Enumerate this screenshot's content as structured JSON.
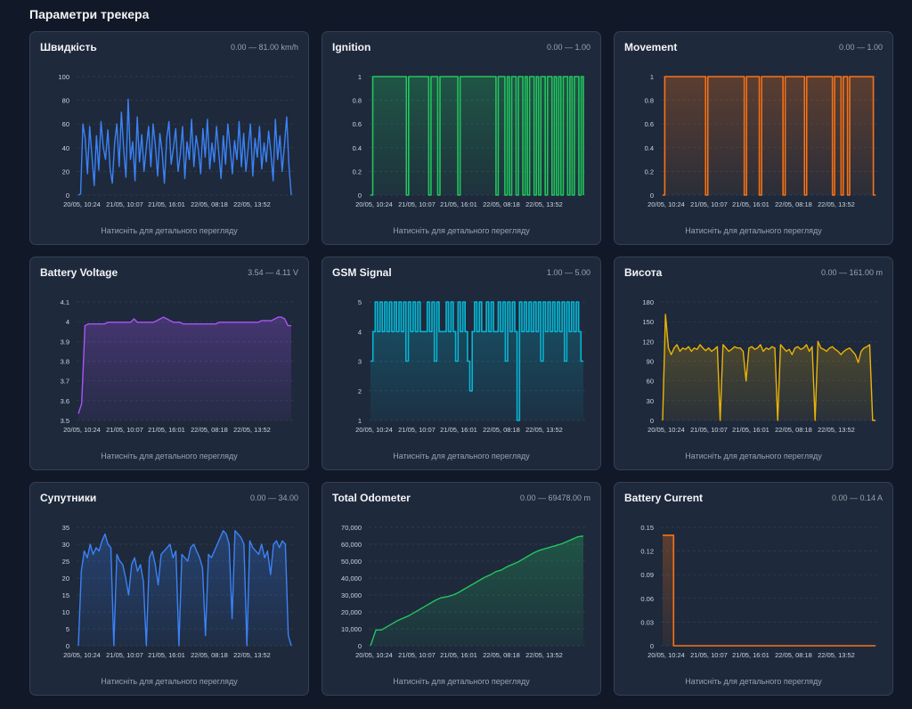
{
  "page_title": "Параметри трекера",
  "footer_text": "Натисніть для детального перегляду",
  "x_ticks": [
    "20/05, 10:24",
    "21/05, 10:07",
    "21/05, 16:01",
    "22/05, 08:18",
    "22/05, 13:52"
  ],
  "chart_data": [
    {
      "id": "speed",
      "type": "line",
      "title": "Швидкість",
      "range_label": "0.00 — 81.00 km/h",
      "color": "#3b82f6",
      "ylim": [
        0,
        100
      ],
      "yticks": [
        "0",
        "20",
        "40",
        "60",
        "80",
        "100"
      ],
      "fill": false,
      "step": false,
      "x_ticks": [
        "20/05, 10:24",
        "21/05, 10:07",
        "21/05, 16:01",
        "22/05, 08:18",
        "22/05, 13:52"
      ],
      "values": [
        0,
        1,
        60,
        48,
        18,
        58,
        32,
        8,
        50,
        21,
        62,
        40,
        30,
        55,
        22,
        10,
        44,
        60,
        24,
        70,
        38,
        15,
        81,
        30,
        45,
        12,
        66,
        28,
        51,
        20,
        40,
        58,
        24,
        60,
        42,
        16,
        52,
        36,
        10,
        48,
        62,
        26,
        40,
        56,
        20,
        34,
        58,
        14,
        45,
        30,
        64,
        24,
        50,
        38,
        18,
        56,
        32,
        64,
        22,
        44,
        28,
        58,
        36,
        14,
        50,
        26,
        60,
        40,
        18,
        46,
        30,
        62,
        24,
        52,
        20,
        40,
        60,
        16,
        48,
        32,
        58,
        22,
        44,
        28,
        54,
        36,
        12,
        64,
        30,
        50,
        20,
        42,
        66,
        24,
        0
      ]
    },
    {
      "id": "ignition",
      "type": "line",
      "title": "Ignition",
      "range_label": "0.00 — 1.00",
      "color": "#22c55e",
      "ylim": [
        0,
        1
      ],
      "yticks": [
        "0",
        "0.2",
        "0.4",
        "0.6",
        "0.8",
        "1"
      ],
      "fill": true,
      "step": true,
      "x_ticks": [
        "20/05, 10:24",
        "21/05, 10:07",
        "21/05, 16:01",
        "22/05, 08:18",
        "22/05, 13:52"
      ],
      "values": [
        0,
        1,
        1,
        1,
        1,
        1,
        1,
        1,
        1,
        1,
        1,
        1,
        1,
        1,
        1,
        1,
        0,
        1,
        1,
        1,
        1,
        1,
        1,
        1,
        1,
        1,
        0,
        1,
        1,
        1,
        0,
        1,
        1,
        1,
        1,
        1,
        1,
        1,
        1,
        0,
        1,
        1,
        1,
        1,
        1,
        1,
        1,
        1,
        1,
        1,
        1,
        1,
        1,
        1,
        1,
        1,
        0,
        1,
        1,
        1,
        0,
        1,
        0,
        1,
        1,
        0,
        1,
        1,
        0,
        1,
        0,
        1,
        1,
        0,
        1,
        0,
        1,
        1,
        0,
        1,
        1,
        0,
        1,
        0,
        1,
        0,
        1,
        1,
        0,
        1,
        0,
        1,
        1,
        0,
        1,
        0
      ]
    },
    {
      "id": "movement",
      "type": "line",
      "title": "Movement",
      "range_label": "0.00 — 1.00",
      "color": "#f97316",
      "ylim": [
        0,
        1
      ],
      "yticks": [
        "0",
        "0.2",
        "0.4",
        "0.6",
        "0.8",
        "1"
      ],
      "fill": true,
      "step": true,
      "x_ticks": [
        "20/05, 10:24",
        "21/05, 10:07",
        "21/05, 16:01",
        "22/05, 08:18",
        "22/05, 13:52"
      ],
      "values": [
        0,
        1,
        1,
        1,
        1,
        1,
        1,
        1,
        1,
        1,
        1,
        1,
        1,
        1,
        1,
        1,
        1,
        1,
        1,
        1,
        0,
        1,
        1,
        1,
        1,
        1,
        1,
        1,
        1,
        1,
        1,
        1,
        1,
        1,
        1,
        1,
        1,
        1,
        0,
        1,
        1,
        1,
        1,
        1,
        1,
        0,
        1,
        1,
        1,
        1,
        1,
        1,
        1,
        1,
        1,
        1,
        0,
        1,
        1,
        1,
        1,
        1,
        1,
        1,
        1,
        1,
        0,
        1,
        1,
        1,
        1,
        1,
        1,
        1,
        1,
        1,
        1,
        1,
        1,
        0,
        1,
        1,
        1,
        0,
        1,
        1,
        0,
        1,
        1,
        1,
        1,
        1,
        1,
        1,
        1,
        1,
        1,
        1,
        0,
        0
      ]
    },
    {
      "id": "battery_voltage",
      "type": "line",
      "title": "Battery Voltage",
      "range_label": "3.54 — 4.11 V",
      "color": "#a855f7",
      "ylim": [
        3.5,
        4.2
      ],
      "yticks": [
        "3.5",
        "3.6",
        "3.7",
        "3.8",
        "3.9",
        "4",
        "4.1"
      ],
      "fill": true,
      "step": false,
      "x_ticks": [
        "20/05, 10:24",
        "21/05, 10:07",
        "21/05, 16:01",
        "22/05, 08:18",
        "22/05, 13:52"
      ],
      "values": [
        3.54,
        3.6,
        4.06,
        4.07,
        4.07,
        4.07,
        4.07,
        4.07,
        4.07,
        4.08,
        4.08,
        4.08,
        4.08,
        4.08,
        4.08,
        4.08,
        4.08,
        4.1,
        4.08,
        4.08,
        4.08,
        4.08,
        4.08,
        4.08,
        4.09,
        4.1,
        4.11,
        4.1,
        4.09,
        4.08,
        4.08,
        4.08,
        4.07,
        4.07,
        4.07,
        4.07,
        4.07,
        4.07,
        4.07,
        4.07,
        4.07,
        4.07,
        4.07,
        4.08,
        4.08,
        4.08,
        4.08,
        4.08,
        4.08,
        4.08,
        4.08,
        4.08,
        4.08,
        4.08,
        4.08,
        4.08,
        4.09,
        4.09,
        4.09,
        4.09,
        4.1,
        4.11,
        4.11,
        4.1,
        4.06,
        4.06
      ]
    },
    {
      "id": "gsm_signal",
      "type": "line",
      "title": "GSM Signal",
      "range_label": "1.00 — 5.00",
      "color": "#06b6d4",
      "ylim": [
        1,
        5
      ],
      "yticks": [
        "1",
        "2",
        "3",
        "4",
        "5"
      ],
      "fill": true,
      "step": true,
      "x_ticks": [
        "20/05, 10:24",
        "21/05, 10:07",
        "21/05, 16:01",
        "22/05, 08:18",
        "22/05, 13:52"
      ],
      "values": [
        3,
        4,
        5,
        4,
        5,
        4,
        5,
        4,
        5,
        4,
        5,
        4,
        5,
        4,
        5,
        3,
        5,
        4,
        5,
        4,
        5,
        4,
        4,
        4,
        5,
        4,
        5,
        3,
        5,
        4,
        4,
        4,
        5,
        4,
        5,
        4,
        3,
        5,
        4,
        5,
        4,
        3,
        2,
        4,
        5,
        4,
        5,
        4,
        4,
        5,
        4,
        5,
        4,
        4,
        5,
        4,
        5,
        3,
        5,
        4,
        5,
        4,
        1,
        5,
        4,
        5,
        4,
        5,
        4,
        5,
        4,
        5,
        3,
        5,
        4,
        5,
        4,
        5,
        4,
        5,
        4,
        5,
        3,
        5,
        4,
        5,
        4,
        5,
        4,
        3,
        3
      ]
    },
    {
      "id": "altitude",
      "type": "line",
      "title": "Висота",
      "range_label": "0.00 — 161.00 m",
      "color": "#eab308",
      "ylim": [
        0,
        180
      ],
      "yticks": [
        "0",
        "30",
        "60",
        "90",
        "120",
        "150",
        "180"
      ],
      "fill": true,
      "step": false,
      "x_ticks": [
        "20/05, 10:24",
        "21/05, 10:07",
        "21/05, 16:01",
        "22/05, 08:18",
        "22/05, 13:52"
      ],
      "values": [
        0,
        161,
        110,
        100,
        110,
        115,
        105,
        110,
        108,
        112,
        105,
        110,
        108,
        115,
        110,
        106,
        110,
        105,
        108,
        112,
        0,
        115,
        110,
        105,
        108,
        112,
        110,
        110,
        105,
        60,
        110,
        112,
        108,
        110,
        115,
        105,
        110,
        108,
        112,
        110,
        0,
        115,
        110,
        105,
        108,
        100,
        110,
        112,
        108,
        110,
        115,
        105,
        112,
        0,
        120,
        110,
        108,
        105,
        110,
        112,
        108,
        105,
        100,
        105,
        108,
        110,
        105,
        100,
        88,
        105,
        110,
        112,
        115,
        0,
        0
      ]
    },
    {
      "id": "satellites",
      "type": "line",
      "title": "Супутники",
      "range_label": "0.00 — 34.00",
      "color": "#3b82f6",
      "ylim": [
        0,
        35
      ],
      "yticks": [
        "0",
        "5",
        "10",
        "15",
        "20",
        "25",
        "30",
        "35"
      ],
      "fill": true,
      "step": false,
      "x_ticks": [
        "20/05, 10:24",
        "21/05, 10:07",
        "21/05, 16:01",
        "22/05, 08:18",
        "22/05, 13:52"
      ],
      "values": [
        0,
        22,
        28,
        26,
        30,
        27,
        29,
        28,
        31,
        33,
        30,
        29,
        0,
        27,
        25,
        24,
        20,
        15,
        24,
        26,
        22,
        24,
        19,
        0,
        26,
        28,
        24,
        18,
        27,
        28,
        29,
        30,
        26,
        28,
        0,
        27,
        26,
        25,
        29,
        30,
        28,
        26,
        23,
        3,
        27,
        26,
        28,
        30,
        32,
        34,
        33,
        30,
        8,
        34,
        33,
        32,
        30,
        0,
        31,
        29,
        28,
        27,
        30,
        26,
        28,
        21,
        30,
        31,
        29,
        31,
        30,
        3,
        0
      ]
    },
    {
      "id": "total_odometer",
      "type": "line",
      "title": "Total Odometer",
      "range_label": "0.00 — 69478.00 m",
      "color": "#22c55e",
      "ylim": [
        0,
        75000
      ],
      "yticks": [
        "0",
        "10,000",
        "20,000",
        "30,000",
        "40,000",
        "50,000",
        "60,000",
        "70,000"
      ],
      "fill": true,
      "step": false,
      "x_ticks": [
        "20/05, 10:24",
        "21/05, 10:07",
        "21/05, 16:01",
        "22/05, 08:18",
        "22/05, 13:52"
      ],
      "values": [
        0,
        10000,
        10000,
        12000,
        14000,
        16000,
        17500,
        19000,
        21000,
        23000,
        25000,
        27000,
        29000,
        30500,
        31000,
        32000,
        33500,
        35500,
        37500,
        39500,
        41500,
        43500,
        45000,
        47000,
        48000,
        50000,
        51500,
        53000,
        55000,
        57000,
        59000,
        60500,
        61500,
        62500,
        63500,
        64500,
        66000,
        67500,
        69000,
        69478
      ]
    },
    {
      "id": "battery_current",
      "type": "line",
      "title": "Battery Current",
      "range_label": "0.00 — 0.14 A",
      "color": "#f97316",
      "ylim": [
        0,
        0.15
      ],
      "yticks": [
        "0",
        "0.03",
        "0.06",
        "0.09",
        "0.12",
        "0.15"
      ],
      "fill": true,
      "step": true,
      "x_ticks": [
        "20/05, 10:24",
        "21/05, 10:07",
        "21/05, 16:01",
        "22/05, 08:18",
        "22/05, 13:52"
      ],
      "values": [
        0.14,
        0.14,
        0,
        0,
        0,
        0,
        0,
        0,
        0,
        0,
        0,
        0,
        0,
        0,
        0,
        0,
        0,
        0,
        0,
        0,
        0,
        0,
        0,
        0,
        0,
        0,
        0,
        0,
        0,
        0,
        0,
        0,
        0,
        0,
        0,
        0,
        0,
        0,
        0,
        0
      ]
    }
  ]
}
